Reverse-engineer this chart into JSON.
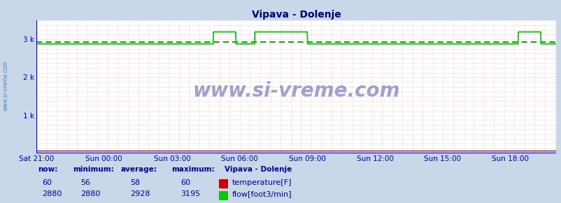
{
  "title": "Vipava - Dolenje",
  "bg_color": "#c8d8e8",
  "plot_bg_color": "#ffffff",
  "grid_color": "#e8a0a0",
  "axis_color": "#0000cc",
  "temp_color": "#cc0000",
  "flow_color": "#00cc00",
  "avg_color": "#008800",
  "watermark_text": "www.si-vreme.com",
  "ylabel_text": "www.si-vreme.com",
  "x_labels": [
    "Sat 21:00",
    "Sun 00:00",
    "Sun 03:00",
    "Sun 06:00",
    "Sun 09:00",
    "Sun 12:00",
    "Sun 15:00",
    "Sun 18:00"
  ],
  "x_ticks_norm": [
    0.0,
    0.1304,
    0.2609,
    0.3913,
    0.5217,
    0.6522,
    0.7826,
    0.913
  ],
  "y_ticks": [
    0,
    1000,
    2000,
    3000
  ],
  "y_labels": [
    "",
    "1 k",
    "2 k",
    "3 k"
  ],
  "ylim": [
    0,
    3500
  ],
  "xlim": [
    0,
    1380
  ],
  "temp_now": 60,
  "temp_min": 56,
  "temp_avg": 58,
  "temp_max": 60,
  "flow_now": 2880,
  "flow_min": 2880,
  "flow_avg": 2928,
  "flow_max": 3195,
  "flow_base": 2880,
  "flow_peak": 3195,
  "flow_avg_value": 2928,
  "info_title": "Vipava - Dolenje",
  "legend_temp_label": "temperature[F]",
  "legend_flow_label": "flow[foot3/min]",
  "label_now": "now:",
  "label_min": "minimum:",
  "label_avg": "average:",
  "label_max": "maximum:",
  "spike1_start": 470,
  "spike1_end": 530,
  "spike2_start": 580,
  "spike2_end": 720,
  "spike3_start": 1280,
  "spike3_end": 1340
}
